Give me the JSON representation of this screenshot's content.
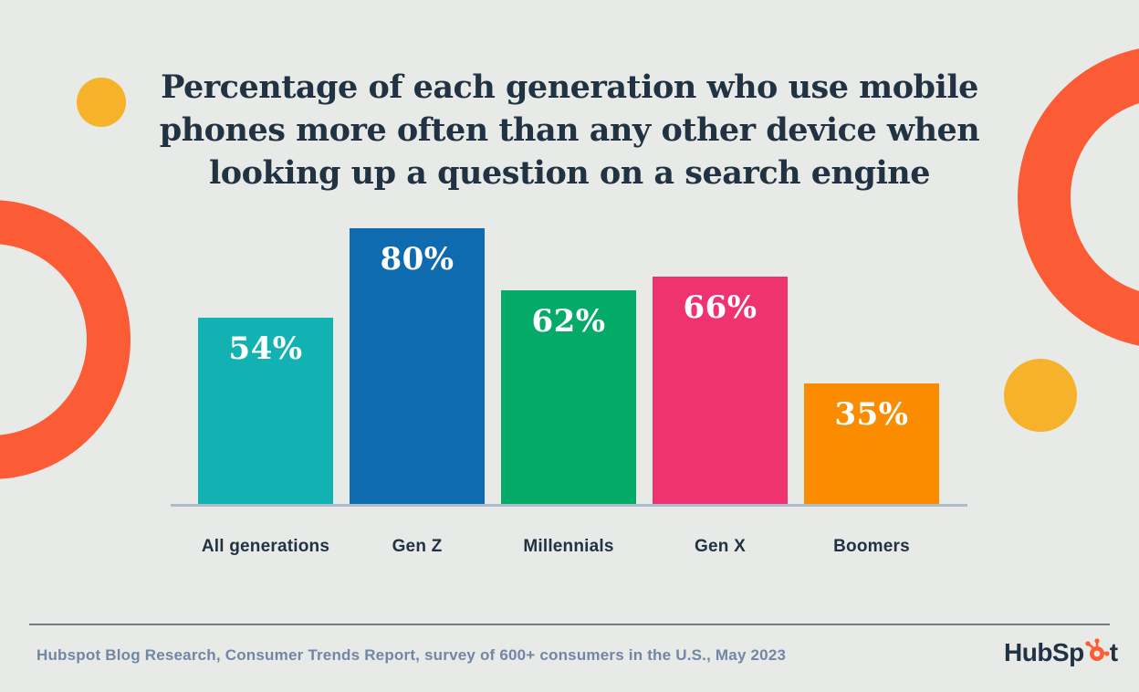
{
  "title": {
    "line1": "Percentage of each generation who use mobile",
    "line2": "phones more often than any other device when",
    "line3": "looking up a question on a search engine"
  },
  "chart_data": {
    "type": "bar",
    "title": "Percentage of each generation who use mobile phones more often than any other device when looking up a question on a search engine",
    "categories": [
      "All generations",
      "Gen Z",
      "Millennials",
      "Gen X",
      "Boomers"
    ],
    "values": [
      54,
      80,
      62,
      66,
      35
    ],
    "value_labels": [
      "54%",
      "80%",
      "62%",
      "66%",
      "35%"
    ],
    "bar_colors": [
      "#12b2b3",
      "#0e6bb0",
      "#04aa68",
      "#ee3370",
      "#fb8c00"
    ],
    "xlabel": "",
    "ylabel": "",
    "ylim": [
      0,
      100
    ],
    "grid": false,
    "legend": "none"
  },
  "footer": {
    "source": "Hubspot Blog Research, Consumer Trends Report, survey of 600+ consumers in the U.S., May 2023",
    "logo_prefix": "HubSp",
    "logo_suffix": "t"
  },
  "colors": {
    "background": "#e8eae8",
    "title_text": "#213343",
    "axis_line": "#aebcc9",
    "divider": "#777d82",
    "source_text": "#7286a5",
    "decor_ring_orange": "#fb5b35",
    "decor_dot_yellow": "#f5b22a",
    "logo_text": "#213343",
    "logo_sprocket_orange": "#ff5c35"
  }
}
